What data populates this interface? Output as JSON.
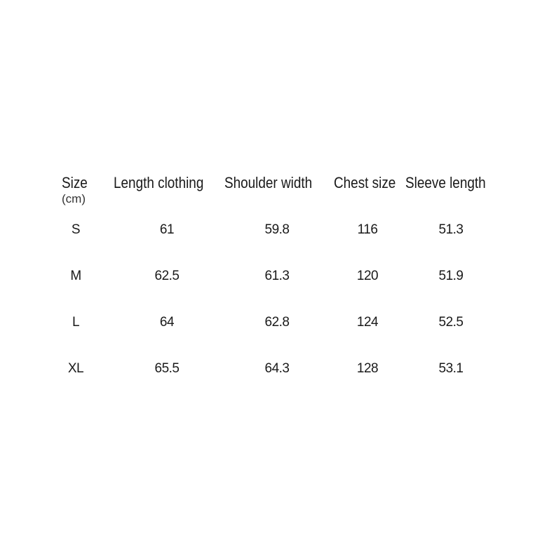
{
  "table": {
    "headers": [
      "Size",
      "Length clothing",
      "Shoulder width",
      "Chest size",
      "Sleeve length"
    ],
    "unit": "(cm)",
    "rows": [
      [
        "S",
        "61",
        "59.8",
        "116",
        "51.3"
      ],
      [
        "M",
        "62.5",
        "61.3",
        "120",
        "51.9"
      ],
      [
        "L",
        "64",
        "62.8",
        "124",
        "52.5"
      ],
      [
        "XL",
        "65.5",
        "64.3",
        "128",
        "53.1"
      ]
    ]
  }
}
